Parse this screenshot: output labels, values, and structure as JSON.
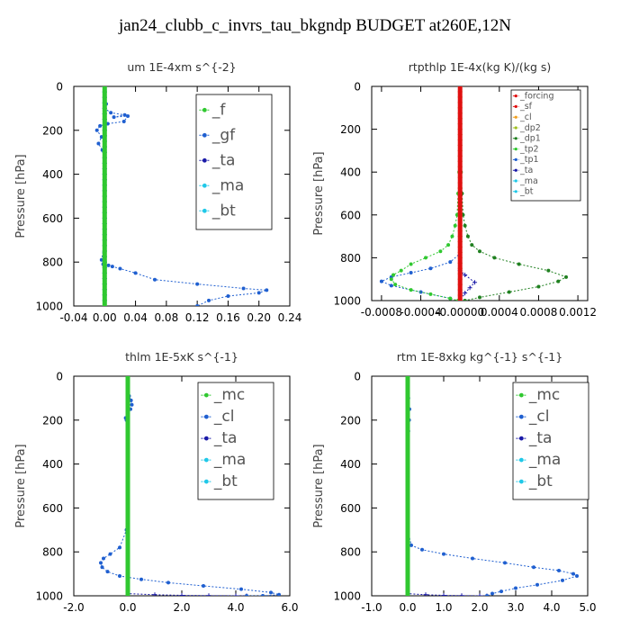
{
  "title": "jan24_clubb_c_invrs_tau_bkgndp  BUDGET at260E,12N",
  "colors": {
    "green": "#30c830",
    "blue": "#1f5fd0",
    "navy": "#1a1aa8",
    "cyan": "#20c8e8",
    "red": "#e01010",
    "orange": "#f0a020",
    "yellowgreen": "#a0c020",
    "darkgreen": "#208020"
  },
  "chart_data": [
    {
      "type": "line",
      "title": "um   1E-4xm s^{-2}",
      "ylabel": "Pressure [hPa]",
      "xlim": [
        -0.04,
        0.24
      ],
      "ylim": [
        1000,
        0
      ],
      "xticks": [
        "-0.04",
        "0.00",
        "0.04",
        "0.08",
        "0.12",
        "0.16",
        "0.20",
        "0.24"
      ],
      "yticks": [
        "0",
        "200",
        "400",
        "600",
        "800",
        "1000"
      ],
      "legend": "top-right",
      "series": [
        {
          "name": "_f",
          "color": "green",
          "x": [
            0,
            0,
            0,
            0,
            0,
            0,
            0,
            0,
            0,
            0,
            0
          ],
          "y": [
            0,
            100,
            200,
            300,
            400,
            500,
            600,
            700,
            800,
            900,
            1000
          ]
        },
        {
          "name": "_gf",
          "color": "blue",
          "x": [
            0,
            0.002,
            0,
            0.008,
            0.026,
            0.012,
            0.03,
            0.025,
            0.004,
            -0.006,
            -0.01,
            -0.004,
            -0.008,
            -0.003,
            0,
            0,
            0,
            0,
            0,
            -0.004,
            -0.002,
            0.005,
            0.01,
            0.02,
            0.04,
            0.065,
            0.12,
            0.18,
            0.21,
            0.2,
            0.16,
            0.135,
            0.12
          ],
          "y": [
            0,
            80,
            100,
            120,
            130,
            140,
            135,
            160,
            170,
            180,
            200,
            230,
            260,
            290,
            350,
            400,
            500,
            600,
            700,
            790,
            810,
            815,
            820,
            830,
            850,
            880,
            900,
            920,
            928,
            940,
            955,
            975,
            1000
          ]
        },
        {
          "name": "_ta",
          "color": "navy",
          "x": [
            0,
            0,
            0,
            0
          ],
          "y": [
            0,
            400,
            800,
            1000
          ]
        },
        {
          "name": "_ma",
          "color": "cyan",
          "x": [
            0,
            0,
            0,
            0
          ],
          "y": [
            0,
            400,
            800,
            1000
          ]
        },
        {
          "name": "_bt",
          "color": "cyan",
          "x": [
            0,
            0,
            0,
            0,
            0,
            0,
            0,
            0,
            0,
            0,
            0
          ],
          "y": [
            0,
            100,
            200,
            300,
            400,
            500,
            600,
            700,
            800,
            900,
            1000
          ]
        }
      ]
    },
    {
      "type": "line",
      "title": "rtpthlp   1E-4x(kg K)/(kg s)",
      "ylabel": "Pressure [hPa]",
      "xlim": [
        -0.0009,
        0.0013
      ],
      "ylim": [
        1000,
        0
      ],
      "xticks": [
        "-0.0008",
        "-0.0004",
        "-0.00000",
        "0.0004",
        "0.0008",
        "0.0012"
      ],
      "xtick_values": [
        -0.0008,
        -0.0004,
        0,
        0.0004,
        0.0008,
        0.0012
      ],
      "yticks": [
        "0",
        "200",
        "400",
        "600",
        "800",
        "1000"
      ],
      "legend": "top-right",
      "series": [
        {
          "name": "_forcing",
          "color": "red",
          "x": [
            0,
            0,
            0,
            0
          ],
          "y": [
            0,
            300,
            700,
            1000
          ]
        },
        {
          "name": "_sf",
          "color": "red",
          "x": [
            0,
            0,
            0,
            0
          ],
          "y": [
            0,
            300,
            700,
            1000
          ]
        },
        {
          "name": "_cl",
          "color": "orange",
          "x": [
            0,
            0,
            0,
            0
          ],
          "y": [
            0,
            300,
            700,
            1000
          ]
        },
        {
          "name": "_dp2",
          "color": "yellowgreen",
          "x": [
            0,
            0,
            0,
            0
          ],
          "y": [
            0,
            300,
            700,
            1000
          ]
        },
        {
          "name": "_dp1",
          "color": "darkgreen",
          "x": [
            0,
            1e-05,
            2e-05,
            3e-05,
            5e-05,
            8e-05,
            0.00012,
            0.0002,
            0.00035,
            0.0006,
            0.0009,
            0.00108,
            0.001,
            0.0008,
            0.0005,
            0.0002,
            5e-05
          ],
          "y": [
            0,
            400,
            500,
            600,
            650,
            700,
            740,
            770,
            800,
            830,
            860,
            890,
            910,
            935,
            960,
            985,
            1000
          ]
        },
        {
          "name": "_tp2",
          "color": "green",
          "x": [
            0,
            -1e-05,
            -2e-05,
            -3e-05,
            -5e-05,
            -8e-05,
            -0.00012,
            -0.0002,
            -0.00035,
            -0.0005,
            -0.0006,
            -0.00068,
            -0.0007,
            -0.00066,
            -0.0005,
            -0.0003,
            -0.0001,
            -2e-05
          ],
          "y": [
            0,
            400,
            500,
            600,
            650,
            700,
            740,
            770,
            800,
            830,
            860,
            880,
            900,
            925,
            950,
            970,
            990,
            1000
          ]
        },
        {
          "name": "_tp1",
          "color": "blue",
          "x": [
            0,
            0,
            -0.0001,
            -0.0003,
            -0.0005,
            -0.0007,
            -0.0008,
            -0.0007,
            -0.0004,
            -0.0001
          ],
          "y": [
            0,
            780,
            820,
            850,
            870,
            890,
            910,
            930,
            960,
            990
          ]
        },
        {
          "name": "_ta",
          "color": "navy",
          "x": [
            0,
            0,
            5e-05,
            0.00015,
            0.0001,
            5e-05,
            0
          ],
          "y": [
            0,
            860,
            880,
            915,
            940,
            965,
            1000
          ]
        },
        {
          "name": "_ma",
          "color": "cyan",
          "x": [
            0,
            0,
            0,
            0
          ],
          "y": [
            0,
            300,
            700,
            1000
          ]
        },
        {
          "name": "_bt",
          "color": "cyan",
          "x": [
            0,
            0,
            0,
            0
          ],
          "y": [
            0,
            300,
            700,
            1000
          ]
        }
      ]
    },
    {
      "type": "line",
      "title": "thlm   1E-5xK s^{-1}",
      "ylabel": "Pressure [hPa]",
      "xlim": [
        -2.0,
        6.0
      ],
      "ylim": [
        1000,
        0
      ],
      "xticks": [
        "-2.0",
        "0.0",
        "2.0",
        "4.0",
        "6.0"
      ],
      "yticks": [
        "0",
        "200",
        "400",
        "600",
        "800",
        "1000"
      ],
      "legend": "top-right",
      "series": [
        {
          "name": "_mc",
          "color": "green",
          "x": [
            0,
            0,
            0,
            0,
            0,
            0,
            0,
            0,
            0,
            0,
            0
          ],
          "y": [
            0,
            100,
            200,
            300,
            400,
            500,
            600,
            700,
            800,
            900,
            1000
          ]
        },
        {
          "name": "_cl",
          "color": "blue",
          "x": [
            0,
            0.05,
            0.12,
            0.15,
            0.1,
            0,
            -0.08,
            -0.05,
            0,
            0,
            0,
            0,
            0,
            -0.05,
            -0.3,
            -0.65,
            -0.9,
            -1.0,
            -0.95,
            -0.75,
            -0.3,
            0.5,
            1.5,
            2.8,
            4.2,
            5.3,
            5.6,
            5.0,
            4.4
          ],
          "y": [
            0,
            90,
            110,
            130,
            150,
            170,
            190,
            200,
            230,
            300,
            400,
            500,
            600,
            700,
            780,
            810,
            830,
            850,
            870,
            890,
            910,
            925,
            940,
            955,
            970,
            985,
            995,
            1000,
            1000
          ]
        },
        {
          "name": "_ta",
          "color": "navy",
          "x": [
            0,
            0,
            1.0,
            2.0,
            3.0,
            4.0,
            4.4
          ],
          "y": [
            0,
            990,
            995,
            998,
            999,
            1000,
            1000
          ]
        },
        {
          "name": "_ma",
          "color": "cyan",
          "x": [
            0,
            0,
            0,
            0
          ],
          "y": [
            0,
            400,
            800,
            1000
          ]
        },
        {
          "name": "_bt",
          "color": "cyan",
          "x": [
            0,
            0,
            0,
            0,
            0,
            0,
            0,
            0,
            0,
            0,
            0
          ],
          "y": [
            0,
            100,
            200,
            300,
            400,
            500,
            600,
            700,
            800,
            900,
            1000
          ]
        }
      ]
    },
    {
      "type": "line",
      "title": "rtm   1E-8xkg kg^{-1} s^{-1}",
      "ylabel": "Pressure [hPa]",
      "xlim": [
        -1.0,
        5.0
      ],
      "ylim": [
        1000,
        0
      ],
      "xticks": [
        "-1.0",
        "0.0",
        "1.0",
        "2.0",
        "3.0",
        "4.0",
        "5.0"
      ],
      "yticks": [
        "0",
        "200",
        "400",
        "600",
        "800",
        "1000"
      ],
      "legend": "top-right",
      "series": [
        {
          "name": "_mc",
          "color": "green",
          "x": [
            0,
            0,
            0,
            0,
            0,
            0,
            0,
            0,
            0,
            0,
            0
          ],
          "y": [
            0,
            100,
            200,
            300,
            400,
            500,
            600,
            700,
            800,
            900,
            1000
          ]
        },
        {
          "name": "_cl",
          "color": "blue",
          "x": [
            0,
            0.02,
            0.05,
            0.04,
            0.02,
            0,
            0,
            0,
            0,
            0,
            0.1,
            0.4,
            1.0,
            1.8,
            2.7,
            3.5,
            4.2,
            4.6,
            4.7,
            4.3,
            3.6,
            3.0,
            2.6,
            2.35,
            2.2
          ],
          "y": [
            0,
            100,
            150,
            200,
            250,
            300,
            400,
            500,
            600,
            700,
            770,
            790,
            810,
            830,
            850,
            870,
            885,
            900,
            910,
            930,
            950,
            965,
            980,
            990,
            1000
          ]
        },
        {
          "name": "_ta",
          "color": "navy",
          "x": [
            0,
            0,
            0.5,
            1.0,
            1.5,
            2.0,
            2.2
          ],
          "y": [
            0,
            990,
            995,
            998,
            999,
            1000,
            1000
          ]
        },
        {
          "name": "_ma",
          "color": "cyan",
          "x": [
            0,
            0,
            0,
            0
          ],
          "y": [
            0,
            400,
            800,
            1000
          ]
        },
        {
          "name": "_bt",
          "color": "cyan",
          "x": [
            0,
            0,
            0,
            0,
            0,
            0,
            0,
            0,
            0,
            0,
            0
          ],
          "y": [
            0,
            100,
            200,
            300,
            400,
            500,
            600,
            700,
            800,
            900,
            1000
          ]
        }
      ]
    }
  ]
}
